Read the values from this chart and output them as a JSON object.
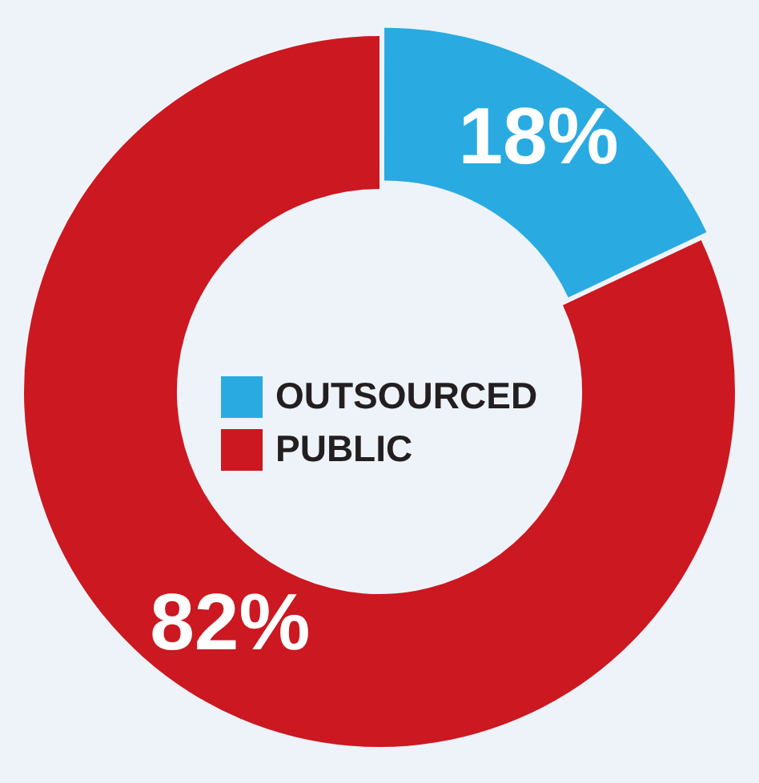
{
  "chart_data": {
    "type": "donut",
    "categories": [
      "OUTSOURCED",
      "PUBLIC"
    ],
    "values": [
      18,
      82
    ],
    "colors": [
      "#29abe2",
      "#cc1820"
    ],
    "value_labels": [
      "18%",
      "82%"
    ],
    "legend": "center"
  }
}
